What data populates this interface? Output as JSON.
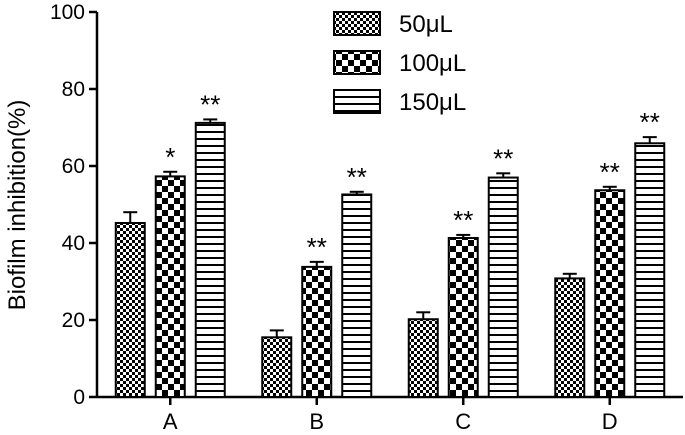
{
  "chart_data": {
    "type": "bar",
    "title": "",
    "xlabel": "",
    "ylabel": "Biofilm inhibition(%)",
    "ylim": [
      0,
      100
    ],
    "yticks": [
      "0",
      "20",
      "40",
      "60",
      "80",
      "100"
    ],
    "grid": false,
    "legend_position": "top-center",
    "categories": [
      "A",
      "B",
      "C",
      "D"
    ],
    "series": [
      {
        "name": "50μL",
        "pattern": "checker-fine",
        "values": [
          45.2,
          15.5,
          20.2,
          30.8
        ],
        "errors": [
          2.8,
          1.8,
          1.8,
          1.2
        ],
        "significance": [
          "",
          "",
          "",
          ""
        ]
      },
      {
        "name": "100μL",
        "pattern": "checker-coarse",
        "values": [
          57.3,
          33.8,
          41.3,
          53.7
        ],
        "errors": [
          1.2,
          1.3,
          0.8,
          0.9
        ],
        "significance": [
          "*",
          "**",
          "**",
          "**"
        ]
      },
      {
        "name": "150μL",
        "pattern": "horizontal-lines",
        "values": [
          71.2,
          52.6,
          57.0,
          65.9
        ],
        "errors": [
          0.9,
          0.7,
          1.1,
          1.6
        ],
        "significance": [
          "**",
          "**",
          "**",
          "**"
        ]
      }
    ]
  }
}
